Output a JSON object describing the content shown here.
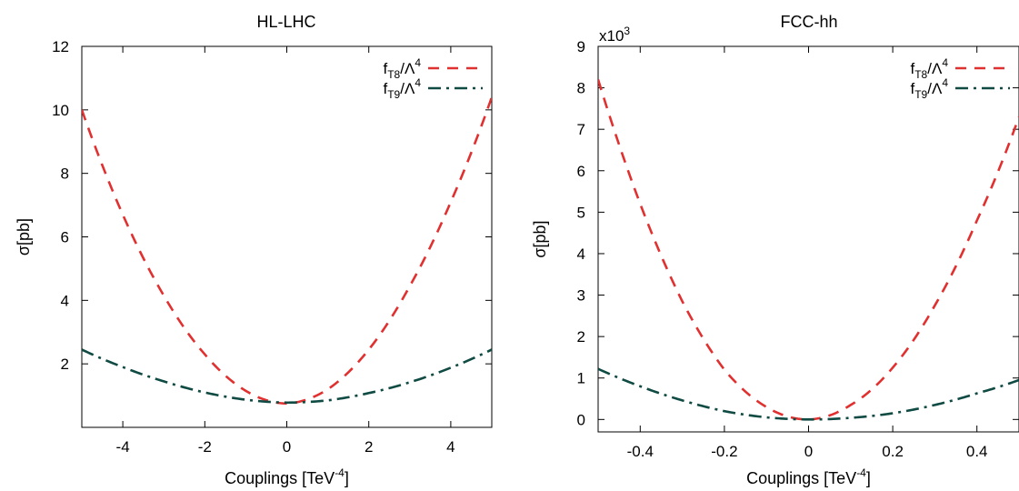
{
  "chart_data": [
    {
      "type": "line",
      "title": "HL-LHC",
      "xlabel": "Couplings [TeV",
      "xlabel_exp": "-4",
      "xlabel_close": "]",
      "ylabel": "σ[pb]",
      "xlim": [
        -5,
        5
      ],
      "ylim": [
        0,
        12
      ],
      "xticks": [
        -4,
        -2,
        0,
        2,
        4
      ],
      "xtick_labels": [
        "-4",
        "-2",
        "0",
        "2",
        "4"
      ],
      "yticks": [
        2,
        4,
        6,
        8,
        10,
        12
      ],
      "ytick_labels": [
        "2",
        "4",
        "6",
        "8",
        "10",
        "12"
      ],
      "y_multiplier": "",
      "y_multiplier_exp": "",
      "legend_position": "top-right",
      "series": [
        {
          "name_parts": [
            "f",
            "T8",
            "/Λ",
            "4"
          ],
          "color": "#e0302f",
          "dash": "dashed",
          "x": [
            -5,
            -4,
            -3,
            -2,
            -1,
            0,
            1,
            2,
            3,
            4,
            5
          ],
          "y": [
            10.0,
            6.7,
            4.15,
            2.3,
            1.15,
            0.75,
            1.2,
            2.45,
            4.45,
            7.1,
            10.4
          ]
        },
        {
          "name_parts": [
            "f",
            "T9",
            "/Λ",
            "4"
          ],
          "color": "#0f4a43",
          "dash": "dashdot",
          "x": [
            -5,
            -4,
            -3,
            -2,
            -1,
            0,
            1,
            2,
            3,
            4,
            5
          ],
          "y": [
            2.45,
            1.9,
            1.45,
            1.1,
            0.87,
            0.78,
            0.85,
            1.08,
            1.42,
            1.88,
            2.45
          ]
        }
      ]
    },
    {
      "type": "line",
      "title": "FCC-hh",
      "xlabel": "Couplings [TeV",
      "xlabel_exp": "-4",
      "xlabel_close": "]",
      "ylabel": "σ[pb]",
      "xlim": [
        -0.5,
        0.5
      ],
      "ylim": [
        -0.3,
        9
      ],
      "xticks": [
        -0.4,
        -0.2,
        0,
        0.2,
        0.4
      ],
      "xtick_labels": [
        "-0.4",
        "-0.2",
        "0",
        "0.2",
        "0.4"
      ],
      "yticks": [
        0,
        1,
        2,
        3,
        4,
        5,
        6,
        7,
        8,
        9
      ],
      "ytick_labels": [
        "0",
        "1",
        "2",
        "3",
        "4",
        "5",
        "6",
        "7",
        "8",
        "9"
      ],
      "y_multiplier": "x10",
      "y_multiplier_exp": "3",
      "legend_position": "top-right",
      "series": [
        {
          "name_parts": [
            "f",
            "T8",
            "/Λ",
            "4"
          ],
          "color": "#e0302f",
          "dash": "dashed",
          "x": [
            -0.5,
            -0.4,
            -0.3,
            -0.2,
            -0.1,
            0,
            0.1,
            0.2,
            0.3,
            0.4,
            0.5
          ],
          "y": [
            8.2,
            5.2,
            2.85,
            1.2,
            0.3,
            0.0,
            0.35,
            1.25,
            2.75,
            4.8,
            7.3
          ]
        },
        {
          "name_parts": [
            "f",
            "T9",
            "/Λ",
            "4"
          ],
          "color": "#0f4a43",
          "dash": "dashdot",
          "x": [
            -0.5,
            -0.4,
            -0.3,
            -0.2,
            -0.1,
            0,
            0.1,
            0.2,
            0.3,
            0.4,
            0.5
          ],
          "y": [
            1.22,
            0.8,
            0.46,
            0.2,
            0.05,
            0.0,
            0.04,
            0.15,
            0.35,
            0.63,
            0.95
          ]
        }
      ]
    }
  ]
}
